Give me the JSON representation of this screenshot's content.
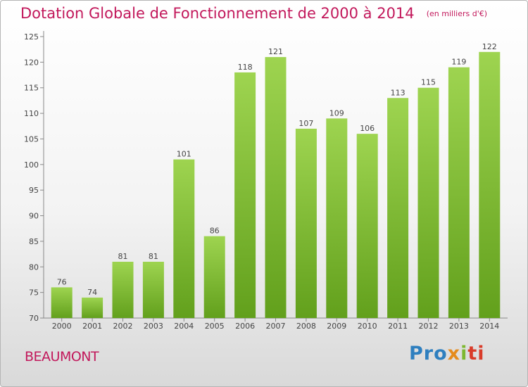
{
  "chart_data": {
    "type": "bar",
    "title": "Dotation Globale de Fonctionnement de 2000 à 2014",
    "unit_label": "(en milliers d'€)",
    "categories": [
      "2000",
      "2001",
      "2002",
      "2003",
      "2004",
      "2005",
      "2006",
      "2007",
      "2008",
      "2009",
      "2010",
      "2011",
      "2012",
      "2013",
      "2014"
    ],
    "values": [
      76,
      74,
      81,
      81,
      101,
      86,
      118,
      121,
      107,
      109,
      106,
      113,
      115,
      119,
      122
    ],
    "value_labels": [
      "76",
      "74",
      "81",
      "81",
      "101",
      "86",
      "118",
      "121",
      "107",
      "109",
      "106",
      "113",
      "115",
      "119",
      "122"
    ],
    "ylim": [
      70,
      125
    ],
    "yticks": [
      "70",
      "75",
      "80",
      "85",
      "90",
      "95",
      "100",
      "105",
      "110",
      "115",
      "120",
      "125"
    ],
    "ytick_values": [
      70,
      75,
      80,
      85,
      90,
      95,
      100,
      105,
      110,
      115,
      120,
      125
    ],
    "grid": false,
    "xlabel": "",
    "ylabel": ""
  },
  "footer": {
    "place_name": "BEAUMONT",
    "logo_parts": [
      "Pro",
      "x",
      "i",
      "ti"
    ]
  },
  "colors": {
    "title": "#c2185b",
    "bar_top": "#9ed450",
    "bar_bottom": "#62a01c"
  }
}
